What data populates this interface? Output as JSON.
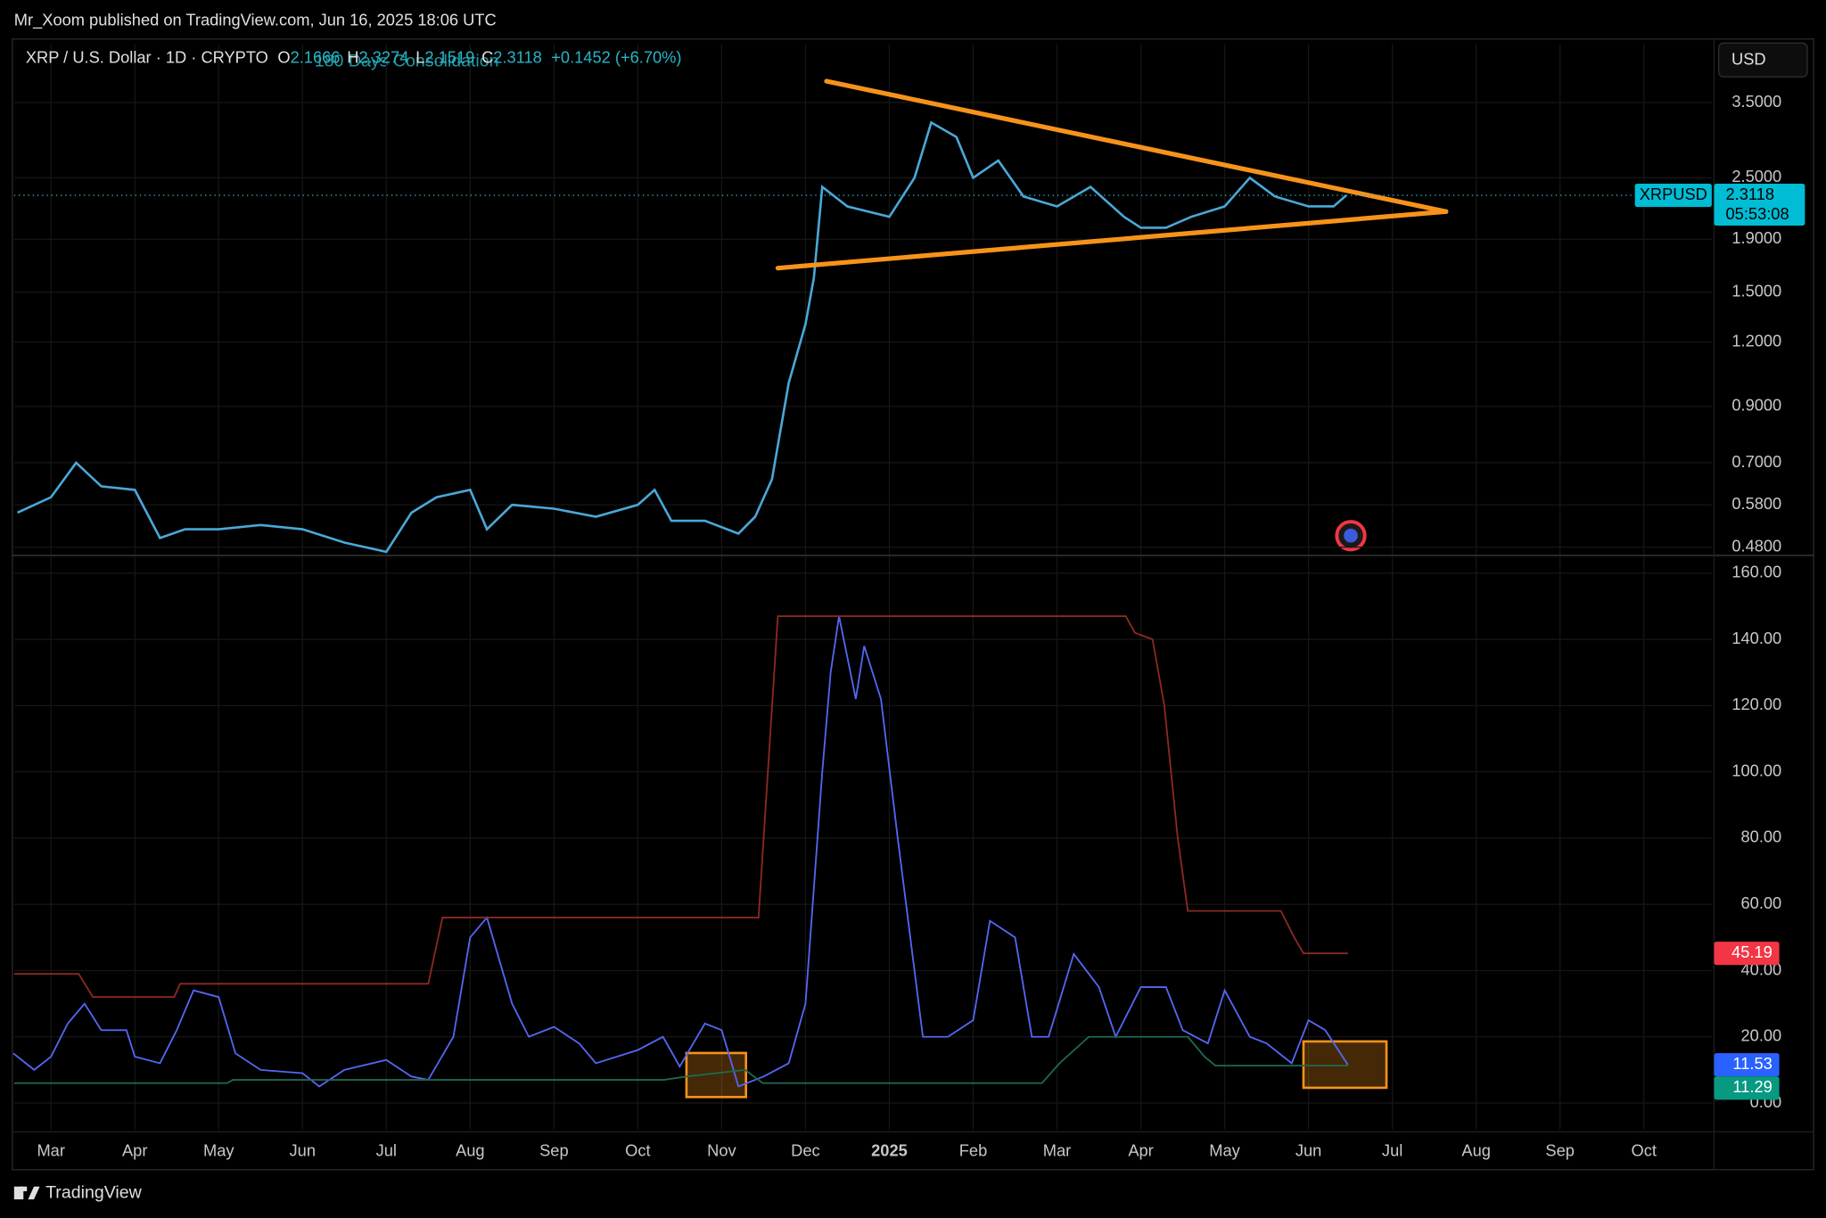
{
  "header": {
    "text": "Mr_Xoom published on TradingView.com, Jun 16, 2025 18:06 UTC"
  },
  "footer": {
    "brand": "TradingView"
  },
  "chart_data": [
    {
      "type": "line",
      "title": "XRP / U.S. Dollar · 1D · CRYPTO",
      "ohlc": [
        {
          "label": "O",
          "value": 2.1666
        },
        {
          "label": "H",
          "value": 2.3274
        },
        {
          "label": "L",
          "value": 2.1519
        },
        {
          "label": "C",
          "value": 2.3118
        }
      ],
      "change": "+0.1452 (+6.70%)",
      "annotation": "180 Days Consolidation",
      "currency": "USD",
      "countdown": "05:53:08",
      "log_scale": true,
      "grid": true,
      "x": [
        -0.4,
        0,
        0.3,
        0.6,
        1.0,
        1.3,
        1.6,
        2.0,
        2.5,
        3.0,
        3.5,
        4.0,
        4.3,
        4.6,
        5.0,
        5.2,
        5.5,
        6.0,
        6.5,
        7.0,
        7.2,
        7.4,
        7.8,
        8.2,
        8.4,
        8.6,
        8.8,
        9.0,
        9.1,
        9.2,
        9.5,
        10.0,
        10.3,
        10.5,
        10.8,
        11.0,
        11.3,
        11.6,
        12.0,
        12.4,
        12.8,
        13.0,
        13.3,
        13.6,
        14.0,
        14.3,
        14.6,
        15.0,
        15.3,
        15.45
      ],
      "series": [
        {
          "name": "XRPUSD",
          "color": "#4aa8d8",
          "label_color": "#00bcd4",
          "values": [
            0.56,
            0.6,
            0.7,
            0.63,
            0.62,
            0.5,
            0.52,
            0.52,
            0.53,
            0.52,
            0.49,
            0.47,
            0.56,
            0.6,
            0.62,
            0.52,
            0.58,
            0.57,
            0.55,
            0.58,
            0.62,
            0.54,
            0.54,
            0.51,
            0.55,
            0.65,
            1.0,
            1.3,
            1.6,
            2.4,
            2.2,
            2.1,
            2.5,
            3.2,
            3.0,
            2.5,
            2.7,
            2.3,
            2.2,
            2.4,
            2.1,
            2.0,
            2.0,
            2.1,
            2.2,
            2.5,
            2.3,
            2.2,
            2.2,
            2.3118
          ]
        }
      ],
      "trendlines": [
        {
          "color": "#f7931a",
          "x": [
            9.25,
            16.64
          ],
          "y": [
            3.85,
            2.15
          ]
        },
        {
          "color": "#f7931a",
          "x": [
            8.67,
            16.64
          ],
          "y": [
            1.67,
            2.15
          ]
        }
      ],
      "xlim": [
        -0.44,
        19.81
      ],
      "ylim": [
        0.465,
        4.54
      ],
      "yticks": [
        {
          "value": 0.48,
          "label": "0.4800"
        },
        {
          "value": 0.58,
          "label": "0.5800"
        },
        {
          "value": 0.7,
          "label": "0.7000"
        },
        {
          "value": 0.9,
          "label": "0.9000"
        },
        {
          "value": 1.2,
          "label": "1.2000"
        },
        {
          "value": 1.5,
          "label": "1.5000"
        },
        {
          "value": 1.9,
          "label": "1.9000"
        },
        {
          "value": 2.5,
          "label": "2.5000"
        },
        {
          "value": 3.5,
          "label": "3.5000"
        }
      ]
    },
    {
      "type": "line",
      "grid": true,
      "series": [
        {
          "color": "#5566f2",
          "label_color": "#2962ff",
          "x": [
            -0.45,
            -0.2,
            0,
            0.2,
            0.4,
            0.6,
            0.9,
            1.0,
            1.3,
            1.5,
            1.7,
            2.0,
            2.2,
            2.5,
            3.0,
            3.2,
            3.5,
            4.0,
            4.3,
            4.5,
            4.8,
            5.0,
            5.2,
            5.5,
            5.7,
            6.0,
            6.3,
            6.5,
            7.0,
            7.3,
            7.5,
            7.8,
            8.0,
            8.2,
            8.5,
            8.8,
            9.0,
            9.2,
            9.3,
            9.4,
            9.6,
            9.7,
            9.9,
            10.1,
            10.4,
            10.7,
            11.0,
            11.2,
            11.5,
            11.7,
            11.9,
            12.2,
            12.5,
            12.7,
            13.0,
            13.3,
            13.5,
            13.8,
            14.0,
            14.3,
            14.5,
            14.8,
            15.0,
            15.2,
            15.47
          ],
          "values": [
            15,
            10,
            14,
            24,
            30,
            22,
            22,
            14,
            12,
            22,
            34,
            32,
            15,
            10,
            9,
            5,
            10,
            13,
            8,
            7,
            20,
            50,
            56,
            30,
            20,
            23,
            18,
            12,
            16,
            20,
            11,
            24,
            22,
            5,
            8,
            12,
            30,
            100,
            130,
            147,
            122,
            138,
            122,
            80,
            20,
            20,
            25,
            55,
            50,
            20,
            20,
            45,
            35,
            20,
            35,
            35,
            22,
            18,
            34,
            20,
            18,
            12,
            25,
            22,
            11.53
          ]
        },
        {
          "color": "#8b2a22",
          "label_color": "#f23645",
          "x": [
            -0.44,
            0.33,
            0.5,
            1.47,
            1.54,
            4.5,
            4.67,
            8.44,
            8.67,
            12.82,
            12.93,
            13.14,
            13.28,
            13.44,
            13.56,
            14.67,
            14.83,
            14.94,
            15.47
          ],
          "values": [
            39,
            39,
            32,
            32,
            36,
            36,
            56,
            56,
            147,
            147,
            142,
            140,
            120,
            80,
            58,
            58,
            50,
            45.19,
            45.19
          ]
        },
        {
          "color": "#1e6a4f",
          "label_color": "#089981",
          "x": [
            -0.44,
            2.1,
            2.17,
            7.31,
            7.58,
            8.28,
            8.49,
            11.82,
            12.03,
            12.38,
            13.56,
            13.76,
            13.89,
            15.47
          ],
          "values": [
            6,
            6,
            7,
            7,
            8,
            10,
            6,
            6,
            12,
            20,
            20,
            14,
            11.29,
            11.29
          ]
        }
      ],
      "highlight_boxes": [
        {
          "color": "#f7931a",
          "x": [
            7.58,
            8.29
          ],
          "y": [
            15.1,
            1.8
          ]
        },
        {
          "color": "#f7931a",
          "x": [
            14.94,
            15.93
          ],
          "y": [
            18.6,
            4.6
          ]
        }
      ],
      "xlim": [
        -0.44,
        19.81
      ],
      "ylim": [
        -8,
        165
      ],
      "xticks": [
        {
          "value": 0,
          "label": "Mar"
        },
        {
          "value": 1,
          "label": "Apr"
        },
        {
          "value": 2,
          "label": "May"
        },
        {
          "value": 3,
          "label": "Jun"
        },
        {
          "value": 4,
          "label": "Jul"
        },
        {
          "value": 5,
          "label": "Aug"
        },
        {
          "value": 6,
          "label": "Sep"
        },
        {
          "value": 7,
          "label": "Oct"
        },
        {
          "value": 8,
          "label": "Nov"
        },
        {
          "value": 9,
          "label": "Dec"
        },
        {
          "value": 10,
          "label": "2025"
        },
        {
          "value": 11,
          "label": "Feb"
        },
        {
          "value": 12,
          "label": "Mar"
        },
        {
          "value": 13,
          "label": "Apr"
        },
        {
          "value": 14,
          "label": "May"
        },
        {
          "value": 15,
          "label": "Jun"
        },
        {
          "value": 16,
          "label": "Jul"
        },
        {
          "value": 17,
          "label": "Aug"
        },
        {
          "value": 18,
          "label": "Sep"
        },
        {
          "value": 19,
          "label": "Oct"
        }
      ],
      "yticks": [
        {
          "value": 0,
          "label": "0.00"
        },
        {
          "value": 20,
          "label": "20.00"
        },
        {
          "value": 40,
          "label": "40.00"
        },
        {
          "value": 60,
          "label": "60.00"
        },
        {
          "value": 80,
          "label": "80.00"
        },
        {
          "value": 100,
          "label": "100.00"
        },
        {
          "value": 120,
          "label": "120.00"
        },
        {
          "value": 140,
          "label": "140.00"
        },
        {
          "value": 160,
          "label": "160.00"
        }
      ]
    }
  ]
}
